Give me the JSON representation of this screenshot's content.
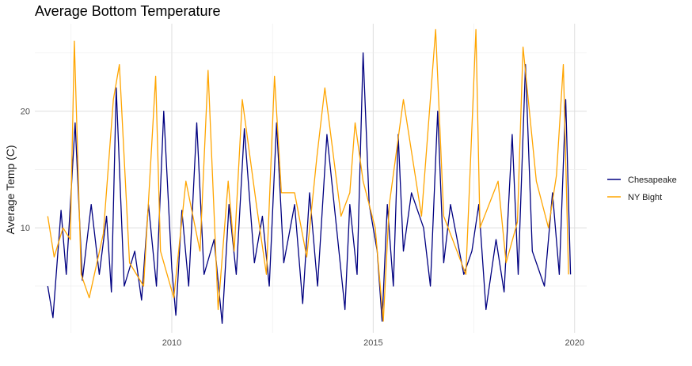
{
  "chart_data": {
    "type": "line",
    "title": "Average Bottom Temperature",
    "xlabel": "",
    "ylabel": "Average Temp (C)",
    "xlim": [
      2006.6,
      2020.3
    ],
    "ylim": [
      1.0,
      27.5
    ],
    "x_ticks": [
      2010,
      2015,
      2020
    ],
    "x_tick_labels": [
      "2010",
      "2015",
      "2020"
    ],
    "y_ticks": [
      10,
      20
    ],
    "y_tick_labels": [
      "10",
      "20"
    ],
    "grid": true,
    "legend_position": "right",
    "series": [
      {
        "name": "Chesapeake",
        "color": "#000080",
        "x": [
          2006.92,
          2007.05,
          2007.25,
          2007.38,
          2007.6,
          2007.78,
          2008.0,
          2008.2,
          2008.38,
          2008.5,
          2008.62,
          2008.82,
          2009.08,
          2009.25,
          2009.42,
          2009.62,
          2009.8,
          2010.0,
          2010.1,
          2010.25,
          2010.42,
          2010.62,
          2010.8,
          2011.05,
          2011.25,
          2011.42,
          2011.6,
          2011.8,
          2012.05,
          2012.25,
          2012.42,
          2012.6,
          2012.78,
          2013.05,
          2013.25,
          2013.42,
          2013.62,
          2013.85,
          2014.3,
          2014.42,
          2014.6,
          2014.75,
          2014.9,
          2015.1,
          2015.22,
          2015.35,
          2015.5,
          2015.62,
          2015.75,
          2015.95,
          2016.25,
          2016.42,
          2016.6,
          2016.75,
          2016.92,
          2017.25,
          2017.45,
          2017.62,
          2017.8,
          2018.05,
          2018.25,
          2018.45,
          2018.6,
          2018.78,
          2018.95,
          2019.25,
          2019.45,
          2019.62,
          2019.78,
          2019.9
        ],
        "values": [
          5.0,
          2.3,
          11.5,
          6.0,
          19.0,
          5.5,
          12.0,
          6.0,
          11.0,
          4.5,
          22.0,
          5.0,
          8.0,
          3.8,
          12.0,
          5.0,
          20.0,
          6.5,
          2.5,
          11.5,
          5.0,
          19.0,
          6.0,
          9.0,
          1.8,
          12.0,
          6.0,
          18.5,
          7.0,
          11.0,
          5.0,
          19.0,
          7.0,
          12.0,
          3.5,
          13.0,
          5.0,
          18.0,
          3.0,
          12.0,
          6.0,
          25.0,
          12.0,
          8.0,
          2.0,
          12.0,
          5.0,
          18.0,
          8.0,
          13.0,
          10.0,
          5.0,
          20.0,
          7.0,
          12.0,
          6.0,
          8.0,
          12.0,
          3.0,
          9.0,
          4.5,
          18.0,
          6.0,
          24.0,
          8.0,
          5.0,
          13.0,
          6.0,
          21.0,
          6.0
        ]
      },
      {
        "name": "NY Bight",
        "color": "#FFA500",
        "x": [
          2006.92,
          2007.08,
          2007.3,
          2007.48,
          2007.58,
          2007.75,
          2007.95,
          2008.3,
          2008.55,
          2008.7,
          2008.95,
          2009.3,
          2009.6,
          2009.72,
          2010.05,
          2010.35,
          2010.7,
          2010.9,
          2011.15,
          2011.4,
          2011.55,
          2011.75,
          2012.1,
          2012.35,
          2012.55,
          2012.72,
          2013.05,
          2013.35,
          2013.6,
          2013.8,
          2014.2,
          2014.42,
          2014.55,
          2014.75,
          2015.05,
          2015.25,
          2015.4,
          2015.75,
          2016.2,
          2016.55,
          2016.75,
          2017.3,
          2017.55,
          2017.65,
          2018.1,
          2018.3,
          2018.58,
          2018.72,
          2019.05,
          2019.35,
          2019.55,
          2019.72,
          2019.85
        ],
        "values": [
          11.0,
          7.5,
          10.0,
          9.0,
          26.0,
          6.0,
          4.0,
          9.5,
          21.0,
          24.0,
          7.0,
          5.0,
          23.0,
          8.0,
          4.0,
          14.0,
          8.0,
          23.5,
          3.0,
          14.0,
          8.0,
          21.0,
          12.0,
          6.0,
          23.0,
          13.0,
          13.0,
          7.5,
          16.0,
          22.0,
          11.0,
          13.0,
          19.0,
          14.0,
          10.0,
          2.0,
          12.0,
          21.0,
          11.0,
          27.0,
          11.0,
          6.0,
          27.0,
          10.0,
          14.0,
          7.0,
          10.5,
          25.5,
          14.0,
          10.0,
          14.5,
          24.0,
          6.0
        ]
      }
    ]
  }
}
